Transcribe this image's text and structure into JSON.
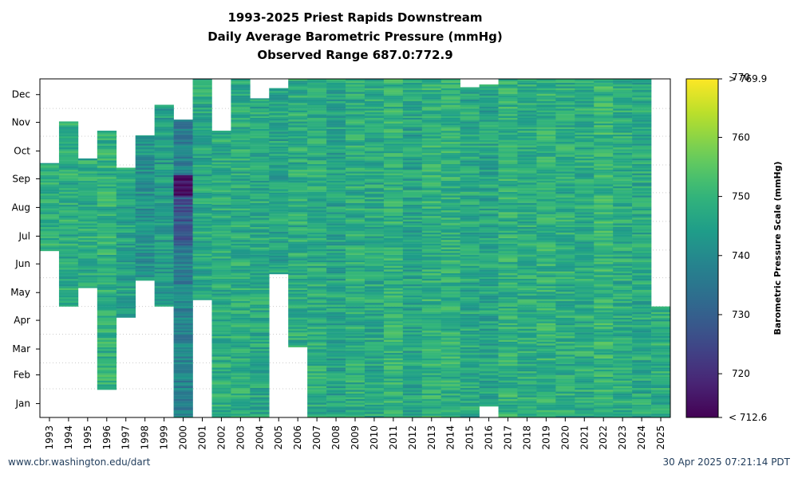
{
  "titles": {
    "line1": "1993-2025 Priest Rapids Downstream",
    "line2": "Daily Average Barometric Pressure (mmHg)",
    "line3": "Observed Range 687.0:772.9"
  },
  "footer": {
    "left": "www.cbr.washington.edu/dart",
    "right": "30 Apr 2025 07:21:14 PDT"
  },
  "chart_data": {
    "type": "heatmap",
    "title": "1993-2025 Priest Rapids Downstream Daily Average Barometric Pressure (mmHg) Observed Range 687.0:772.9",
    "x_categories": [
      "1993",
      "1994",
      "1995",
      "1996",
      "1997",
      "1998",
      "1999",
      "2000",
      "2001",
      "2002",
      "2003",
      "2004",
      "2005",
      "2006",
      "2007",
      "2008",
      "2009",
      "2010",
      "2011",
      "2012",
      "2013",
      "2014",
      "2015",
      "2016",
      "2017",
      "2018",
      "2019",
      "2020",
      "2021",
      "2022",
      "2023",
      "2024",
      "2025"
    ],
    "y_ticks": [
      "Jan",
      "Feb",
      "Mar",
      "Apr",
      "May",
      "Jun",
      "Jul",
      "Aug",
      "Sep",
      "Oct",
      "Nov",
      "Dec"
    ],
    "colorbar": {
      "label": "Barometric Pressure Scale (mmHg)",
      "min": 712.6,
      "max": 769.9,
      "ticks": [
        720,
        730,
        740,
        750,
        760
      ],
      "min_label": "< 712.6",
      "max_label": "> 769.9",
      "max_extra_label": "770",
      "colormap": "viridis"
    },
    "columns": [
      {
        "year": "1993",
        "start": 180,
        "end": 275,
        "mean": 748
      },
      {
        "year": "1994",
        "start": 120,
        "end": 320,
        "mean": 748
      },
      {
        "year": "1995",
        "start": 140,
        "end": 280,
        "mean": 748
      },
      {
        "year": "1996",
        "start": 30,
        "end": 310,
        "mean": 749
      },
      {
        "year": "1997",
        "start": 108,
        "end": 270,
        "mean": 746
      },
      {
        "year": "1998",
        "start": 148,
        "end": 305,
        "mean": 742
      },
      {
        "year": "1999",
        "start": 120,
        "end": 338,
        "mean": 744
      },
      {
        "year": "2000",
        "start": 0,
        "end": 322,
        "mean": 738,
        "low_start": 185,
        "low_end": 262,
        "low_mean": 728,
        "lowest_start": 240,
        "lowest_end": 262,
        "lowest_mean": 714
      },
      {
        "year": "2001",
        "start": 127,
        "end": 366,
        "mean": 747
      },
      {
        "year": "2002",
        "start": 0,
        "end": 310,
        "mean": 748
      },
      {
        "year": "2003",
        "start": 0,
        "end": 366,
        "mean": 748
      },
      {
        "year": "2004",
        "start": 0,
        "end": 345,
        "mean": 747
      },
      {
        "year": "2005",
        "start": 155,
        "end": 356,
        "mean": 746
      },
      {
        "year": "2006",
        "start": 76,
        "end": 366,
        "mean": 748
      },
      {
        "year": "2007",
        "start": 0,
        "end": 366,
        "mean": 748
      },
      {
        "year": "2008",
        "start": 0,
        "end": 366,
        "mean": 746
      },
      {
        "year": "2009",
        "start": 0,
        "end": 366,
        "mean": 748
      },
      {
        "year": "2010",
        "start": 0,
        "end": 366,
        "mean": 747
      },
      {
        "year": "2011",
        "start": 0,
        "end": 366,
        "mean": 749
      },
      {
        "year": "2012",
        "start": 0,
        "end": 366,
        "mean": 746
      },
      {
        "year": "2013",
        "start": 0,
        "end": 366,
        "mean": 749
      },
      {
        "year": "2014",
        "start": 0,
        "end": 366,
        "mean": 749
      },
      {
        "year": "2015",
        "start": 0,
        "end": 357,
        "mean": 747
      },
      {
        "year": "2016",
        "start": 12,
        "end": 360,
        "mean": 746
      },
      {
        "year": "2017",
        "start": 0,
        "end": 366,
        "mean": 749
      },
      {
        "year": "2018",
        "start": 0,
        "end": 366,
        "mean": 748
      },
      {
        "year": "2019",
        "start": 0,
        "end": 366,
        "mean": 749
      },
      {
        "year": "2020",
        "start": 0,
        "end": 366,
        "mean": 748
      },
      {
        "year": "2021",
        "start": 0,
        "end": 366,
        "mean": 748
      },
      {
        "year": "2022",
        "start": 0,
        "end": 366,
        "mean": 750
      },
      {
        "year": "2023",
        "start": 0,
        "end": 366,
        "mean": 748
      },
      {
        "year": "2024",
        "start": 0,
        "end": 366,
        "mean": 747
      },
      {
        "year": "2025",
        "start": 0,
        "end": 120,
        "mean": 748
      }
    ]
  }
}
